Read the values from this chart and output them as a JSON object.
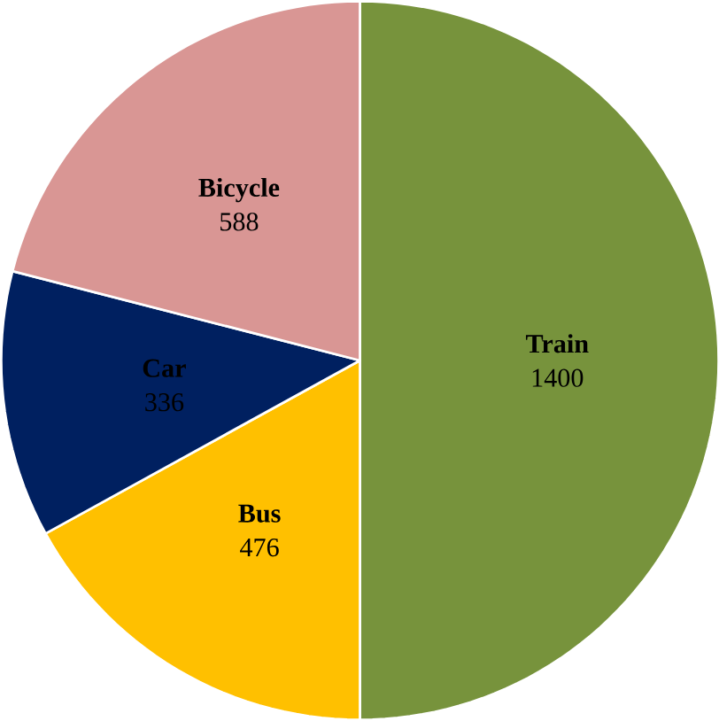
{
  "chart_data": {
    "type": "pie",
    "categories": [
      "Train",
      "Bus",
      "Car",
      "Bicycle"
    ],
    "values": [
      1400,
      476,
      336,
      588
    ],
    "colors": [
      "#77933c",
      "#ffc000",
      "#002060",
      "#d99694"
    ],
    "data_labels": true
  }
}
